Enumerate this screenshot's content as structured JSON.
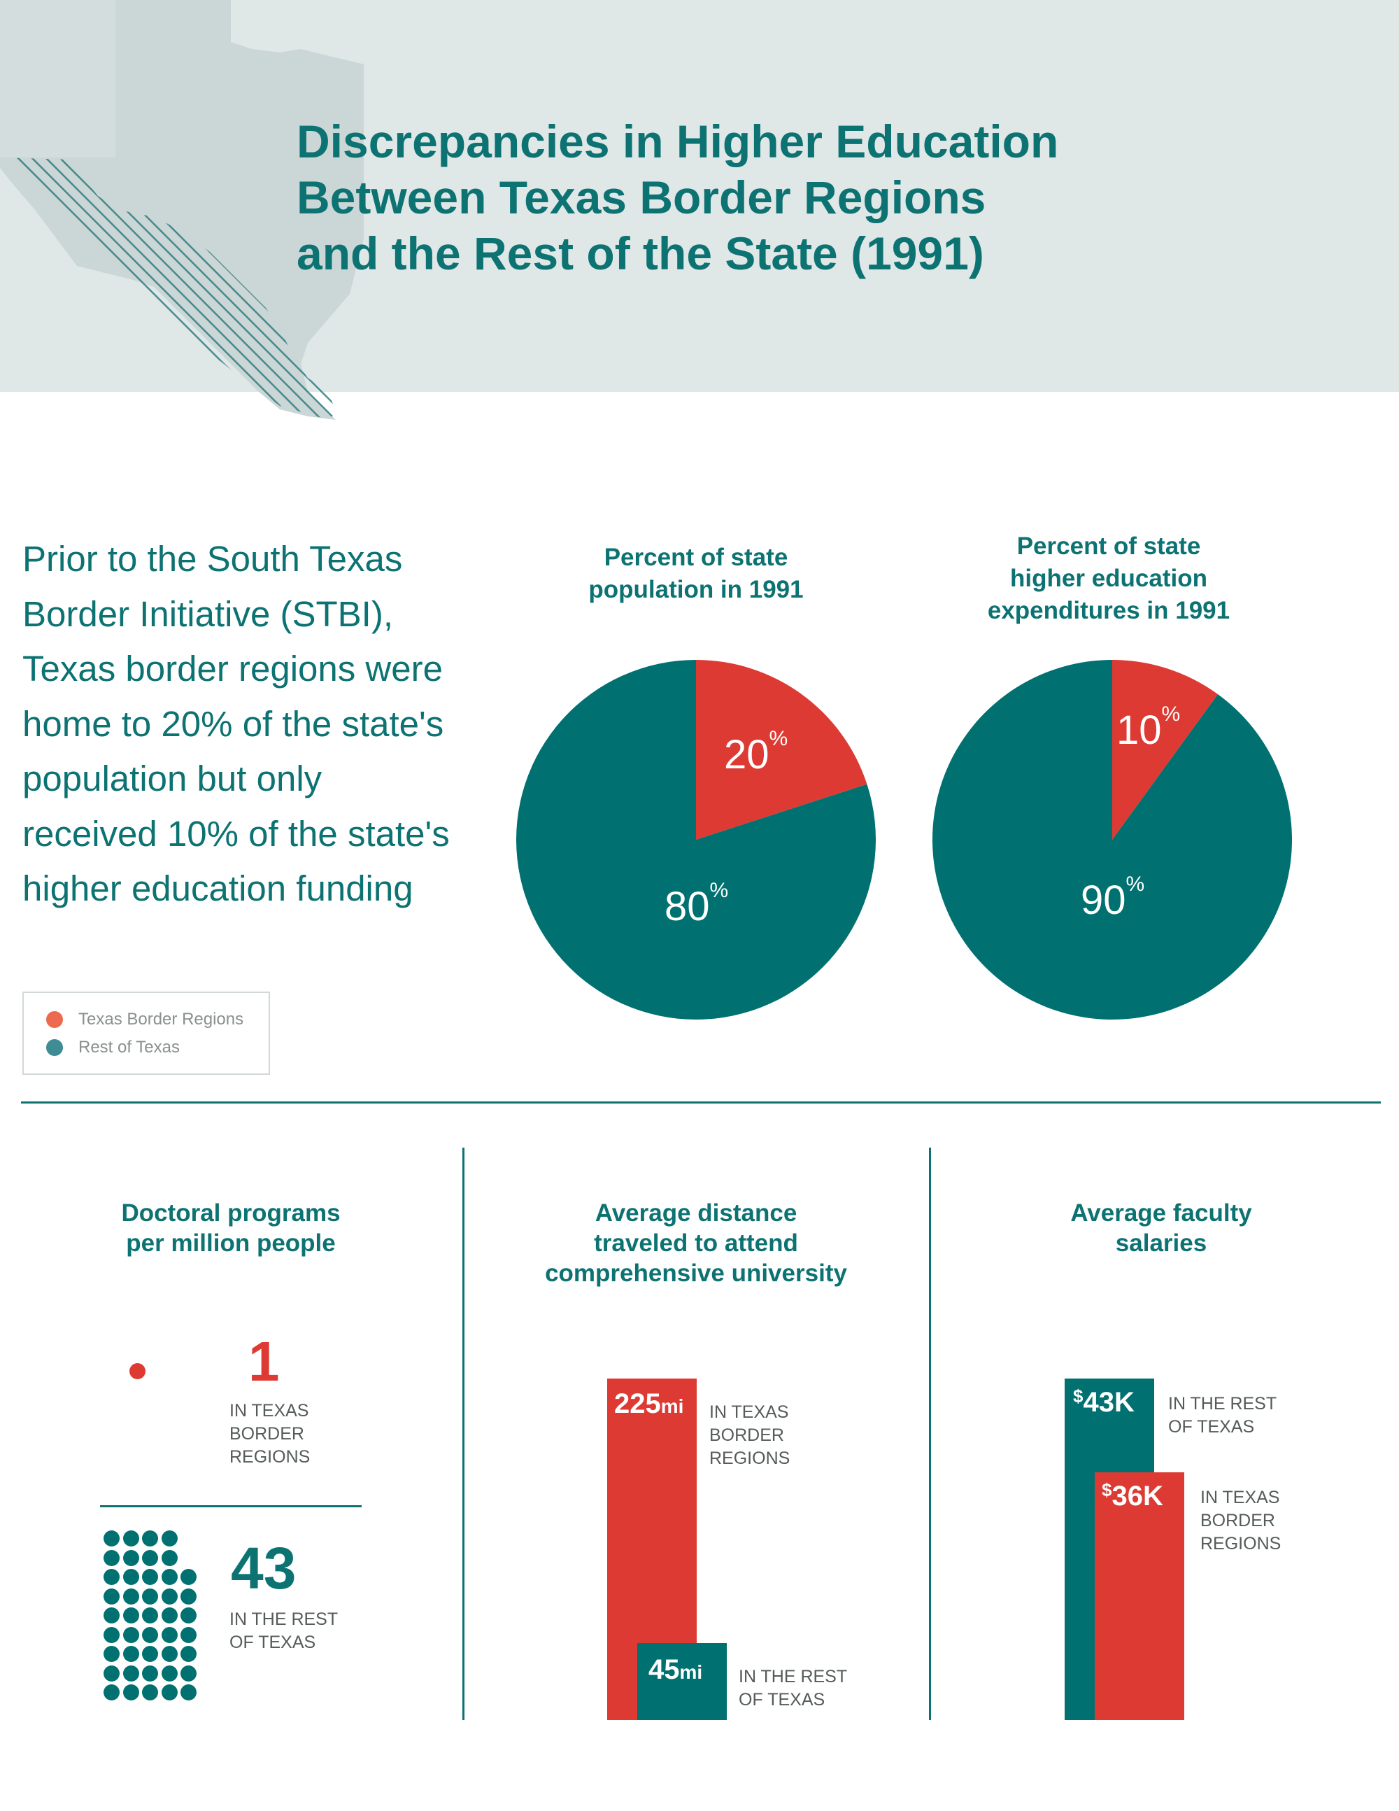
{
  "header": {
    "title_lines": [
      "Discrepancies in Higher Education",
      "Between Texas Border Regions",
      "and the Rest of the State (1991)"
    ]
  },
  "intro": {
    "text": "Prior to the South Texas Border Initiative (STBI), Texas border regions were home to 20% of the state's population but only received 10% of the state's higher education funding"
  },
  "legend": {
    "items": [
      {
        "label": "Texas Border Regions",
        "color": "#ee6a4e"
      },
      {
        "label": "Rest of Texas",
        "color": "#3e8c94"
      }
    ]
  },
  "colors": {
    "red": "#dd3a33",
    "teal": "#007070",
    "map_grey": "#cbd6d6"
  },
  "chart_data": [
    {
      "type": "pie",
      "title_lines": [
        "Percent of state",
        "population in 1991"
      ],
      "slices": [
        {
          "name": "Texas Border Regions",
          "value": 20,
          "label": "20",
          "unit": "%"
        },
        {
          "name": "Rest of Texas",
          "value": 80,
          "label": "80",
          "unit": "%"
        }
      ]
    },
    {
      "type": "pie",
      "title_lines": [
        "Percent of state",
        "higher education",
        "expenditures in 1991"
      ],
      "slices": [
        {
          "name": "Texas Border Regions",
          "value": 10,
          "label": "10",
          "unit": "%"
        },
        {
          "name": "Rest of Texas",
          "value": 90,
          "label": "90",
          "unit": "%"
        }
      ]
    },
    {
      "type": "bar",
      "title_lines": [
        "Doctoral programs",
        "per million people"
      ],
      "categories": [
        "IN TEXAS BORDER REGIONS",
        "IN THE REST OF TEXAS"
      ],
      "values": [
        1,
        43
      ],
      "captions": [
        "IN TEXAS\nBORDER\nREGIONS",
        "IN THE REST\nOF TEXAS"
      ]
    },
    {
      "type": "bar",
      "title_lines": [
        "Average distance",
        "traveled to attend",
        "comprehensive university"
      ],
      "categories": [
        "IN TEXAS BORDER REGIONS",
        "IN THE REST OF TEXAS"
      ],
      "values": [
        225,
        45
      ],
      "unit": "mi",
      "captions": [
        "IN TEXAS\nBORDER\nREGIONS",
        "IN THE REST\nOF TEXAS"
      ]
    },
    {
      "type": "bar",
      "title_lines": [
        "Average faculty",
        "salaries"
      ],
      "categories": [
        "IN THE REST OF TEXAS",
        "IN TEXAS BORDER REGIONS"
      ],
      "values": [
        43,
        36
      ],
      "display": [
        "43K",
        "36K"
      ],
      "currency": "$",
      "captions": [
        "IN THE REST\nOF TEXAS",
        "IN TEXAS\nBORDER\nREGIONS"
      ]
    }
  ]
}
